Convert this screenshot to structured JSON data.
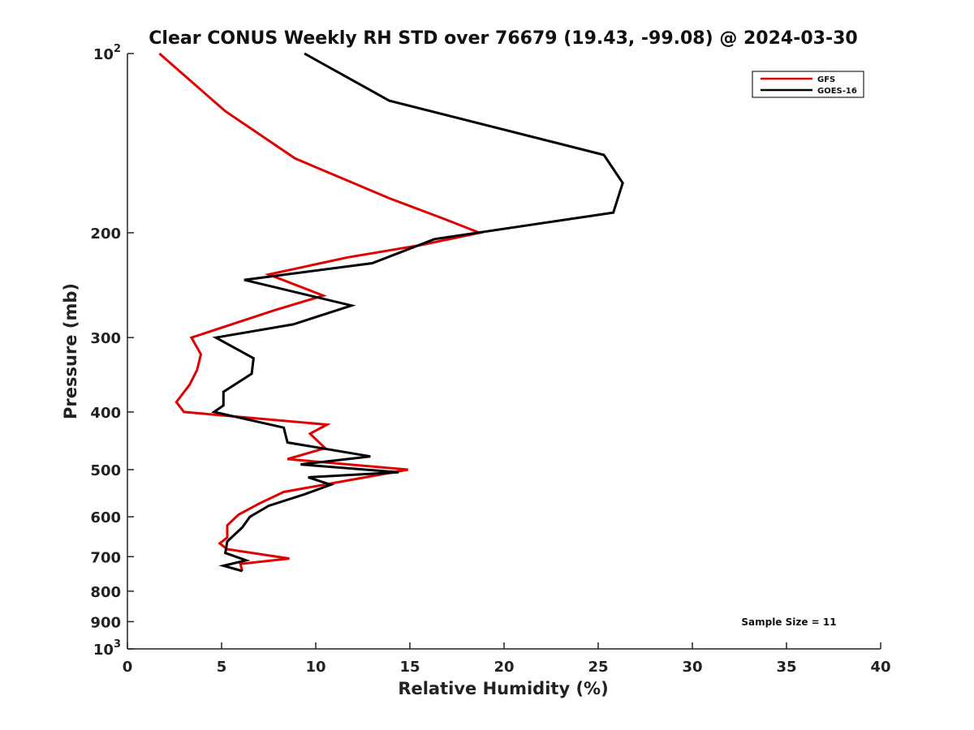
{
  "chart_data": {
    "type": "line",
    "title": "Clear CONUS Weekly RH STD over 76679 (19.43, -99.08) @ 2024-03-30",
    "xlabel": "Relative Humidity (%)",
    "ylabel": "Pressure (mb)",
    "xlim": [
      0,
      40
    ],
    "ylim": [
      100,
      1000
    ],
    "y_scale": "log",
    "y_reversed": true,
    "x_ticks": [
      0,
      5,
      10,
      15,
      20,
      25,
      30,
      35,
      40
    ],
    "y_ticks": [
      {
        "value": 100,
        "label": "10",
        "sup": "2"
      },
      {
        "value": 200,
        "label": "200",
        "sup": ""
      },
      {
        "value": 300,
        "label": "300",
        "sup": ""
      },
      {
        "value": 400,
        "label": "400",
        "sup": ""
      },
      {
        "value": 500,
        "label": "500",
        "sup": ""
      },
      {
        "value": 600,
        "label": "600",
        "sup": ""
      },
      {
        "value": 700,
        "label": "700",
        "sup": ""
      },
      {
        "value": 800,
        "label": "800",
        "sup": ""
      },
      {
        "value": 900,
        "label": "900",
        "sup": ""
      },
      {
        "value": 1000,
        "label": "10",
        "sup": "3"
      }
    ],
    "grid": false,
    "legend_position": "top-right",
    "annotation": "Sample Size = 11",
    "series": [
      {
        "name": "GFS",
        "color": "#e00000",
        "points": [
          [
            1.7,
            100
          ],
          [
            5.2,
            125
          ],
          [
            8.9,
            150
          ],
          [
            13.9,
            175
          ],
          [
            16.9,
            190
          ],
          [
            18.7,
            200
          ],
          [
            15.5,
            210
          ],
          [
            11.7,
            220
          ],
          [
            7.5,
            235
          ],
          [
            10.4,
            255
          ],
          [
            7.8,
            270
          ],
          [
            3.4,
            300
          ],
          [
            3.9,
            320
          ],
          [
            3.7,
            340
          ],
          [
            3.3,
            360
          ],
          [
            2.6,
            385
          ],
          [
            3.0,
            400
          ],
          [
            10.6,
            420
          ],
          [
            9.7,
            435
          ],
          [
            10.5,
            460
          ],
          [
            8.5,
            480
          ],
          [
            14.9,
            500
          ],
          [
            11.9,
            520
          ],
          [
            8.3,
            545
          ],
          [
            7.0,
            570
          ],
          [
            5.9,
            595
          ],
          [
            5.3,
            620
          ],
          [
            5.3,
            650
          ],
          [
            4.9,
            665
          ],
          [
            5.3,
            680
          ],
          [
            8.6,
            705
          ],
          [
            6.0,
            720
          ],
          [
            6.1,
            740
          ]
        ]
      },
      {
        "name": "GOES-16",
        "color": "#000000",
        "points": [
          [
            9.4,
            100
          ],
          [
            13.9,
            120
          ],
          [
            25.3,
            148
          ],
          [
            26.3,
            165
          ],
          [
            25.8,
            185
          ],
          [
            16.3,
            205
          ],
          [
            13.0,
            225
          ],
          [
            6.2,
            240
          ],
          [
            11.9,
            265
          ],
          [
            8.8,
            285
          ],
          [
            4.7,
            300
          ],
          [
            6.7,
            325
          ],
          [
            6.6,
            345
          ],
          [
            5.1,
            370
          ],
          [
            5.1,
            390
          ],
          [
            4.6,
            400
          ],
          [
            8.3,
            425
          ],
          [
            8.5,
            450
          ],
          [
            12.9,
            475
          ],
          [
            9.2,
            490
          ],
          [
            14.4,
            505
          ],
          [
            9.6,
            515
          ],
          [
            10.8,
            530
          ],
          [
            9.4,
            550
          ],
          [
            7.5,
            575
          ],
          [
            6.5,
            600
          ],
          [
            6.1,
            625
          ],
          [
            5.3,
            660
          ],
          [
            5.2,
            690
          ],
          [
            6.3,
            710
          ],
          [
            5.1,
            725
          ],
          [
            6.1,
            740
          ]
        ]
      }
    ]
  }
}
